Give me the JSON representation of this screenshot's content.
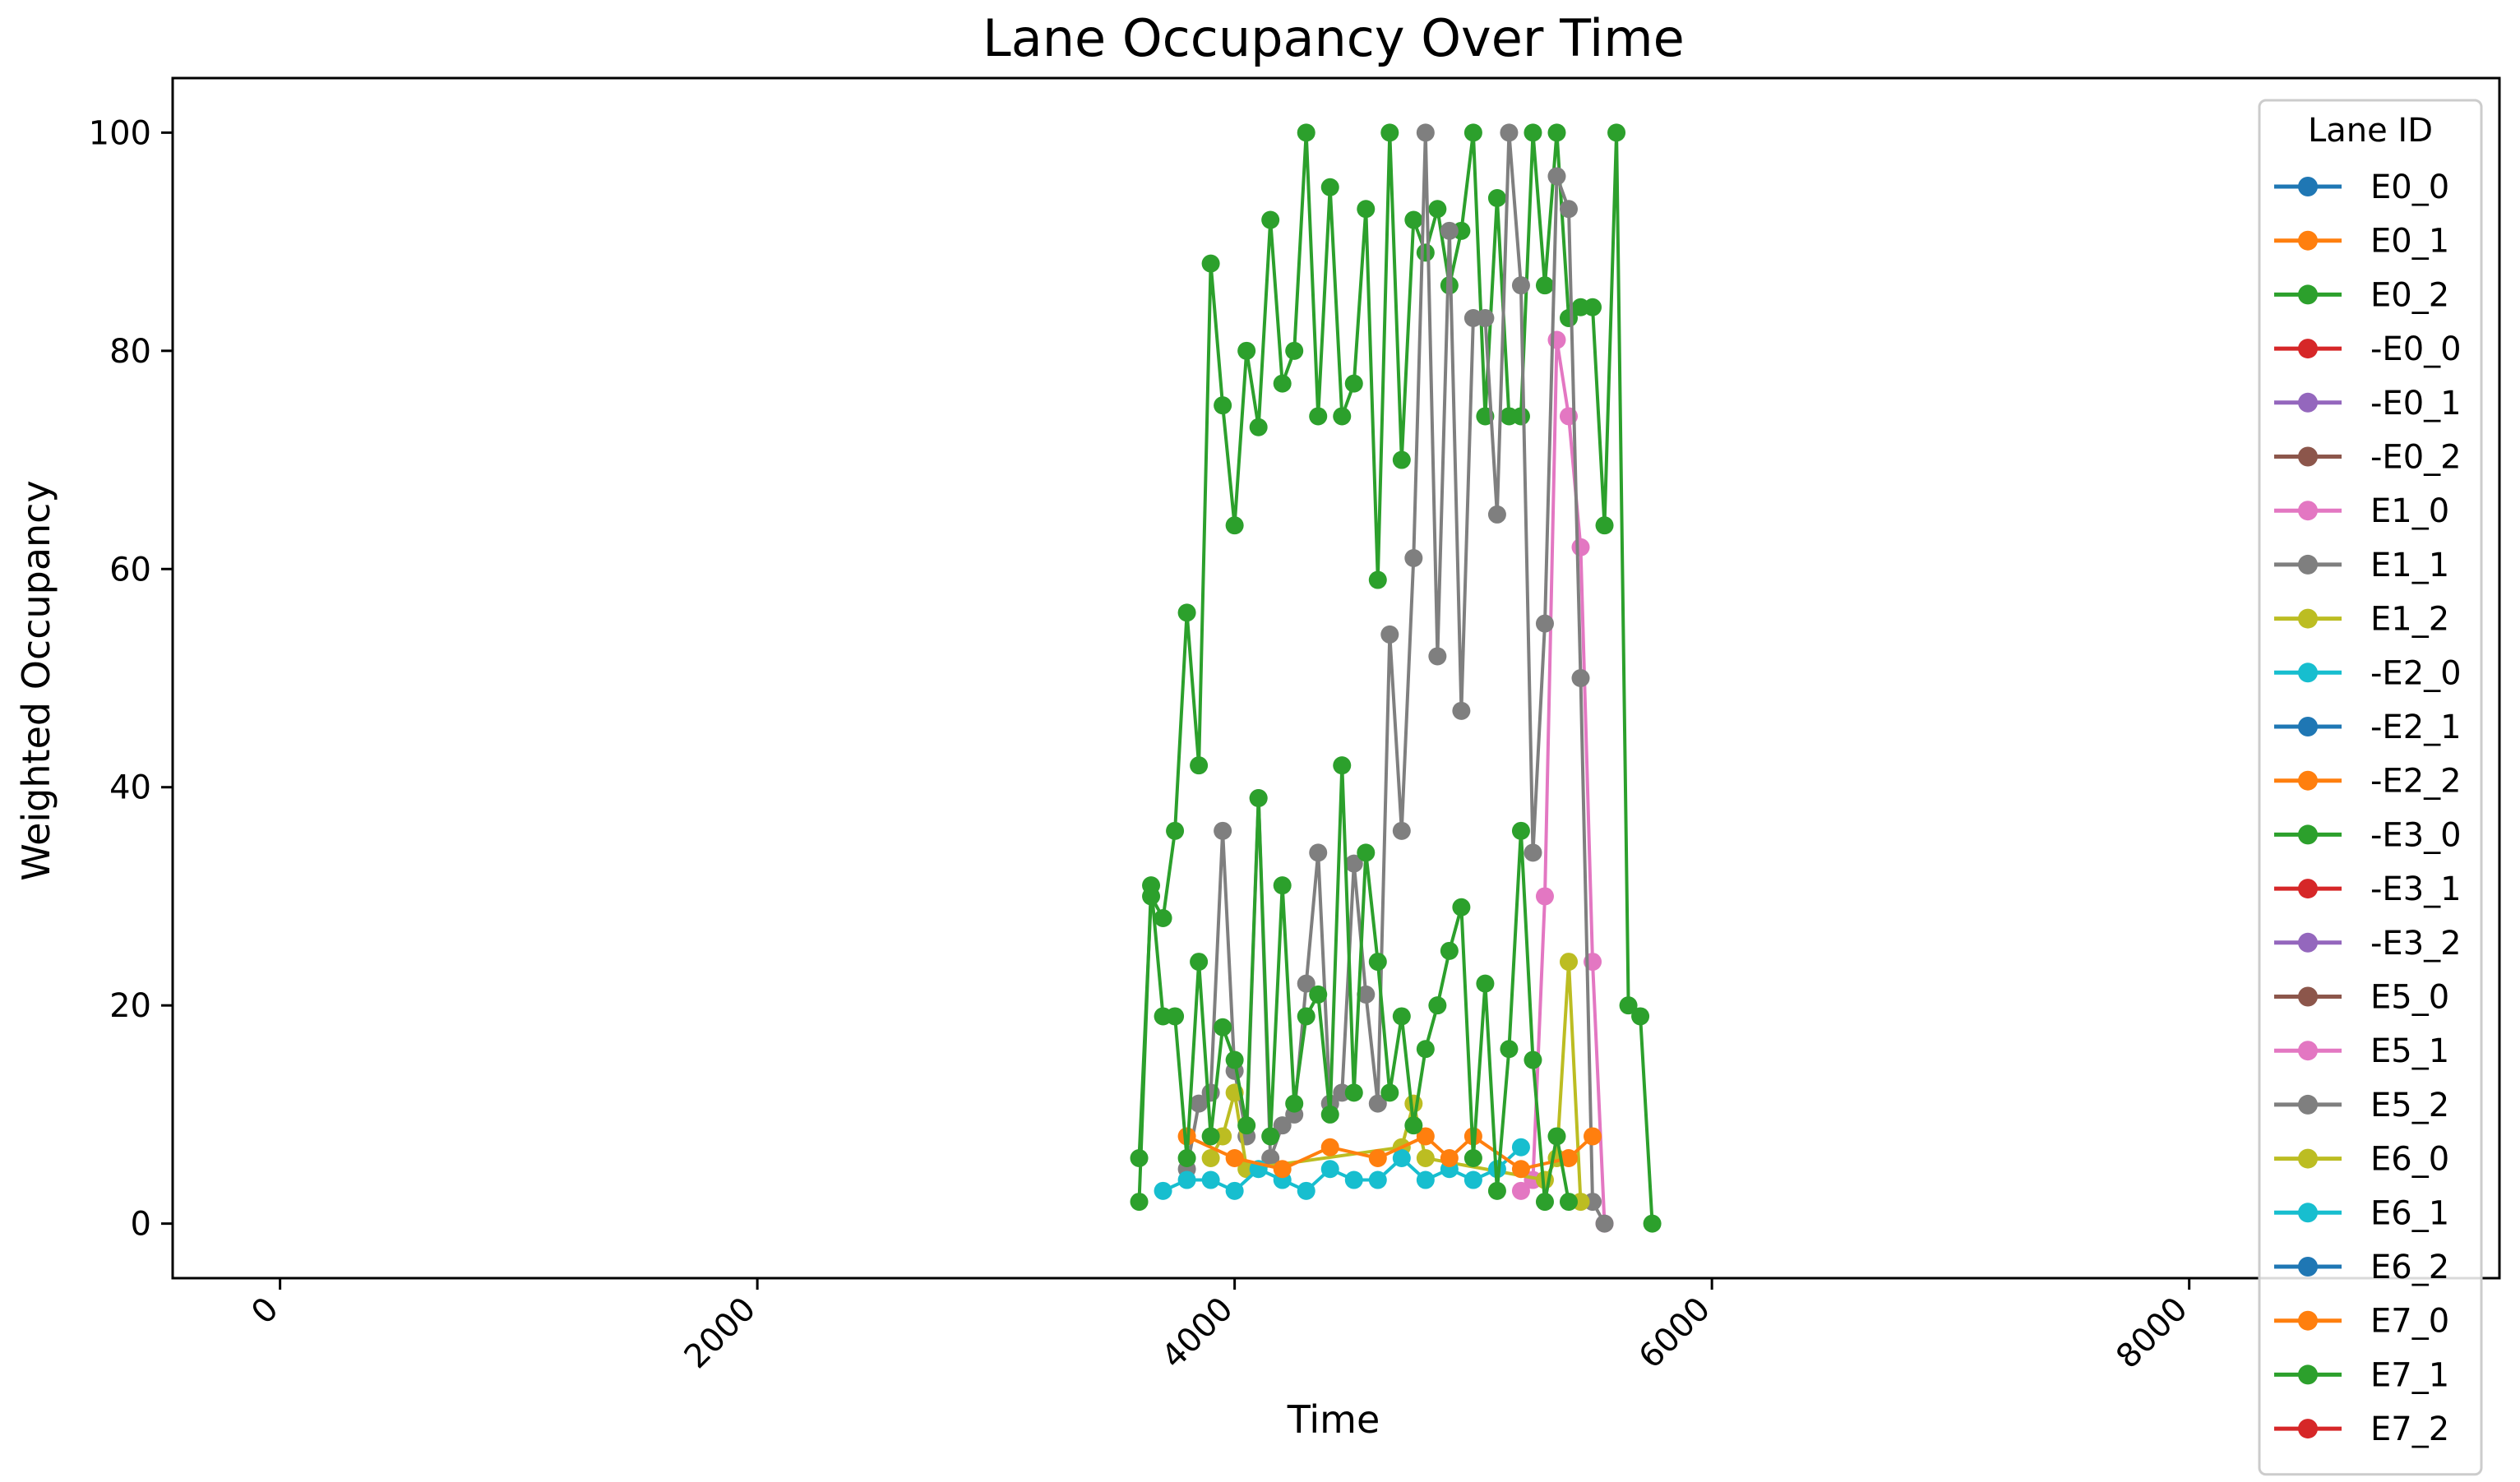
{
  "chart_data": {
    "type": "line",
    "title": "Lane Occupancy Over Time",
    "xlabel": "Time",
    "ylabel": "Weighted Occupancy",
    "xlim": [
      -450,
      9300
    ],
    "ylim": [
      -5,
      105
    ],
    "xticks": [
      0,
      2000,
      4000,
      6000,
      8000
    ],
    "xtick_labels": [
      "0",
      "2000",
      "4000",
      "6000",
      "8000"
    ],
    "yticks": [
      0,
      20,
      40,
      60,
      80,
      100
    ],
    "ytick_labels": [
      "0",
      "20",
      "40",
      "60",
      "80",
      "100"
    ],
    "xtick_rotation": 45,
    "grid": false,
    "legend_title": "Lane ID",
    "legend_position": "right",
    "series": [
      {
        "name": "E0_0",
        "color": "#1f77b4"
      },
      {
        "name": "E0_1",
        "color": "#ff7f0e"
      },
      {
        "name": "E0_2",
        "color": "#2ca02c",
        "x": [
          3600,
          3650,
          3700,
          3750,
          3800,
          3850,
          3900,
          3950,
          4000,
          4050,
          4100,
          4150,
          4200,
          4250,
          4300,
          4350,
          4400,
          4450,
          4500,
          4550,
          4600,
          4650,
          4700,
          4750,
          4800,
          4850,
          4900,
          4950,
          5000,
          5050,
          5100,
          5150,
          5200,
          5250,
          5300,
          5350,
          5400,
          5450,
          5500,
          5550,
          5600,
          5650,
          5700,
          5750
        ],
        "values": [
          6,
          30,
          28,
          36,
          56,
          42,
          88,
          75,
          64,
          80,
          73,
          92,
          77,
          80,
          100,
          74,
          95,
          74,
          77,
          93,
          59,
          100,
          70,
          92,
          89,
          93,
          86,
          91,
          100,
          74,
          94,
          74,
          74,
          100,
          86,
          100,
          83,
          84,
          84,
          64,
          100,
          20,
          19,
          0
        ]
      },
      {
        "name": "-E0_0",
        "color": "#d62728"
      },
      {
        "name": "-E0_1",
        "color": "#9467bd"
      },
      {
        "name": "-E0_2",
        "color": "#8c564b"
      },
      {
        "name": "E1_0",
        "color": "#e377c2",
        "x": [
          5200,
          5250,
          5300,
          5350,
          5400,
          5450,
          5500,
          5550
        ],
        "values": [
          3,
          4,
          30,
          81,
          74,
          62,
          24,
          0
        ]
      },
      {
        "name": "E1_1",
        "color": "#7f7f7f",
        "x": [
          3800,
          3850,
          3900,
          3950,
          4000,
          4050,
          4100,
          4150,
          4200,
          4250,
          4300,
          4350,
          4400,
          4450,
          4500,
          4550,
          4600,
          4650,
          4700,
          4750,
          4800,
          4850,
          4900,
          4950,
          5000,
          5050,
          5100,
          5150,
          5200,
          5250,
          5300,
          5350,
          5400,
          5450,
          5500,
          5550
        ],
        "values": [
          5,
          11,
          12,
          36,
          14,
          8,
          39,
          6,
          9,
          10,
          22,
          34,
          11,
          12,
          33,
          21,
          11,
          54,
          36,
          61,
          100,
          52,
          91,
          47,
          83,
          83,
          65,
          100,
          86,
          34,
          55,
          96,
          93,
          50,
          2,
          0
        ]
      },
      {
        "name": "E1_2",
        "color": "#bcbd22",
        "x": [
          3900,
          3950,
          4000,
          4050,
          4700,
          4750,
          4800,
          5300,
          5350,
          5400,
          5450
        ],
        "values": [
          6,
          8,
          12,
          5,
          7,
          11,
          6,
          4,
          6,
          24,
          2
        ]
      },
      {
        "name": "-E2_0",
        "color": "#17becf",
        "x": [
          3700,
          3800,
          3900,
          4000,
          4100,
          4200,
          4300,
          4400,
          4500,
          4600,
          4700,
          4800,
          4900,
          5000,
          5100,
          5200
        ],
        "values": [
          3,
          4,
          4,
          3,
          5,
          4,
          3,
          5,
          4,
          4,
          6,
          4,
          5,
          4,
          5,
          7
        ]
      },
      {
        "name": "-E2_1",
        "color": "#1f77b4"
      },
      {
        "name": "-E2_2",
        "color": "#ff7f0e",
        "x": [
          3800,
          4000,
          4200,
          4400,
          4600,
          4800,
          4900,
          5000,
          5200,
          5400,
          5500
        ],
        "values": [
          8,
          6,
          5,
          7,
          6,
          8,
          6,
          8,
          5,
          6,
          8
        ]
      },
      {
        "name": "-E3_0",
        "color": "#2ca02c",
        "x": [
          3600,
          3650,
          3700,
          3750,
          3800,
          3850,
          3900,
          3950,
          4000,
          4050,
          4100,
          4150,
          4200,
          4250,
          4300,
          4350,
          4400,
          4450,
          4500,
          4550,
          4600,
          4650,
          4700,
          4750,
          4800,
          4850,
          4900,
          4950,
          5000,
          5050,
          5100,
          5150,
          5200,
          5250,
          5300,
          5350,
          5400
        ],
        "values": [
          2,
          31,
          19,
          19,
          6,
          24,
          8,
          18,
          15,
          9,
          39,
          8,
          31,
          11,
          19,
          21,
          10,
          42,
          12,
          34,
          24,
          12,
          19,
          9,
          16,
          20,
          25,
          29,
          6,
          22,
          3,
          16,
          36,
          15,
          2,
          8,
          2
        ]
      },
      {
        "name": "-E3_1",
        "color": "#d62728"
      },
      {
        "name": "-E3_2",
        "color": "#9467bd"
      },
      {
        "name": "E5_0",
        "color": "#8c564b"
      },
      {
        "name": "E5_1",
        "color": "#e377c2"
      },
      {
        "name": "E5_2",
        "color": "#7f7f7f"
      },
      {
        "name": "E6_0",
        "color": "#bcbd22"
      },
      {
        "name": "E6_1",
        "color": "#17becf"
      },
      {
        "name": "E6_2",
        "color": "#1f77b4"
      },
      {
        "name": "E7_0",
        "color": "#ff7f0e"
      },
      {
        "name": "E7_1",
        "color": "#2ca02c"
      },
      {
        "name": "E7_2",
        "color": "#d62728"
      }
    ]
  }
}
